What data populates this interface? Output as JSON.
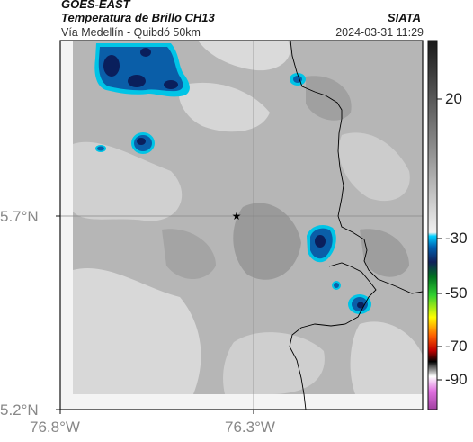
{
  "header": {
    "satellite": "GOES-EAST",
    "product": "Temperatura de Brillo CH13",
    "region": "Vía Medellín - Quibdó 50km",
    "organization": "SIATA",
    "datetime": "2024-03-31 11:29"
  },
  "axes": {
    "lat_labels": [
      "5.7°N",
      "5.2°N"
    ],
    "lon_labels": [
      "76.8°W",
      "76.3°W"
    ]
  },
  "colorbar": {
    "tick_labels": [
      "20",
      "-30",
      "-50",
      "-70",
      "-90"
    ],
    "ticks": [
      20,
      -30,
      -50,
      -70,
      -90
    ],
    "range": [
      -95,
      45
    ]
  },
  "markers": [
    {
      "name": "route-reference-star",
      "symbol": "★"
    }
  ],
  "colors": {
    "cold_cloud": "#0a5ea8",
    "cold_cloud_edge": "#00c4e6",
    "cold_cloud_core": "#0a1f5c",
    "coastline": "#000000",
    "grid": "#888888"
  }
}
